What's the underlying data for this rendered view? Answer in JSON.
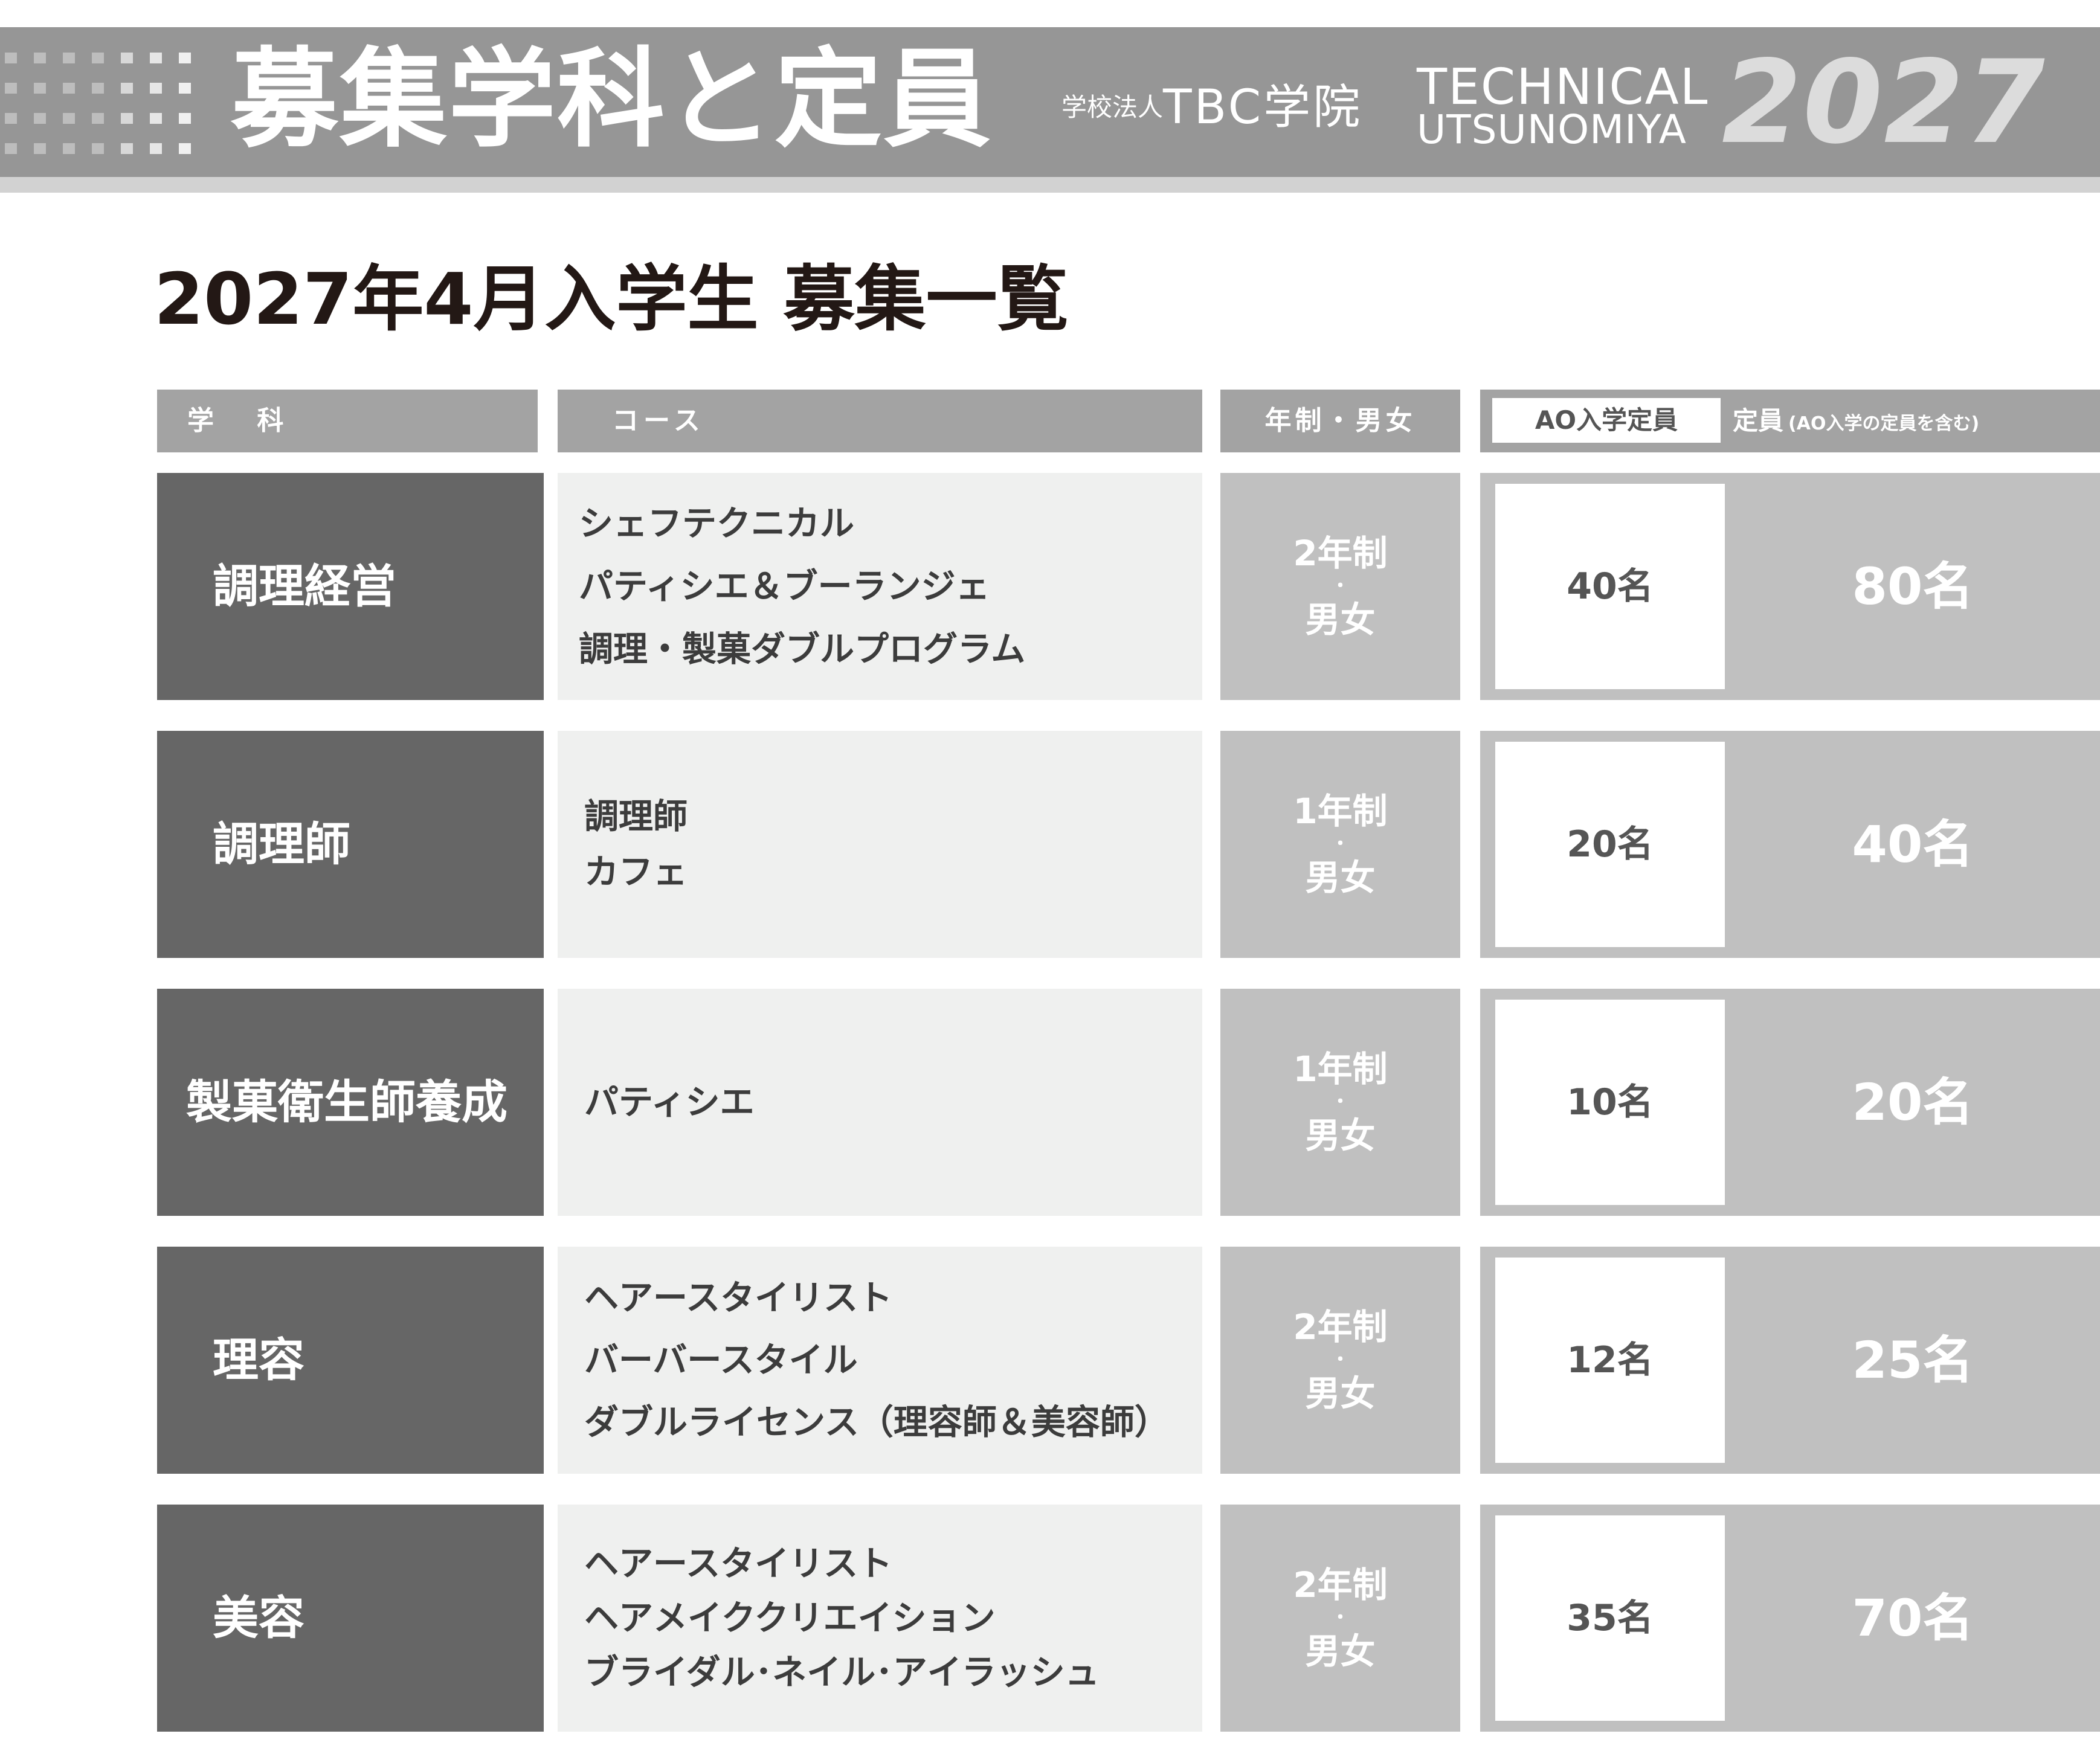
{
  "header": {
    "title": "募集学科と定員",
    "corp_prefix": "学校法人",
    "corp_name": "TBC学院",
    "brand_line1": "TECHNICAL",
    "brand_line2": "UTSUNOMIYA",
    "year": "2027",
    "colors": {
      "band": "#969696",
      "band_rule": "#d2d2d2",
      "year_text": "#dcdcdc"
    }
  },
  "subtitle": "2027年4月入学生 募集一覧",
  "table": {
    "headers": {
      "dept": "学 科",
      "course": "コース",
      "years_sex": "年制・男女",
      "ao": "AO入学定員",
      "total": "定員",
      "total_note": "(AO入学の定員を含む)"
    },
    "rows": [
      {
        "dept": "調理経営",
        "courses": [
          "シェフテクニカル",
          "パティシエ＆ブーランジェ",
          "調理・製菓ダブルプログラム"
        ],
        "years": "2年制",
        "sep": "・",
        "sex": "男女",
        "ao": "40名",
        "total": "80名"
      },
      {
        "dept": "調理師",
        "courses": [
          "調理師",
          "カフェ"
        ],
        "years": "1年制",
        "sep": "・",
        "sex": "男女",
        "ao": "20名",
        "total": "40名"
      },
      {
        "dept": "製菓衛生師養成",
        "courses": [
          "パティシエ"
        ],
        "years": "1年制",
        "sep": "・",
        "sex": "男女",
        "ao": "10名",
        "total": "20名"
      },
      {
        "dept": "理容",
        "courses": [
          "ヘアースタイリスト",
          "バーバースタイル",
          "ダブルライセンス（理容師＆美容師）"
        ],
        "years": "2年制",
        "sep": "・",
        "sex": "男女",
        "ao": "12名",
        "total": "25名"
      },
      {
        "dept": "美容",
        "courses": [
          "ヘアースタイリスト",
          "ヘアメイククリエイション",
          "ブライダル･ネイル･アイラッシュ"
        ],
        "years": "2年制",
        "sep": "・",
        "sex": "男女",
        "ao": "35名",
        "total": "70名"
      }
    ]
  }
}
